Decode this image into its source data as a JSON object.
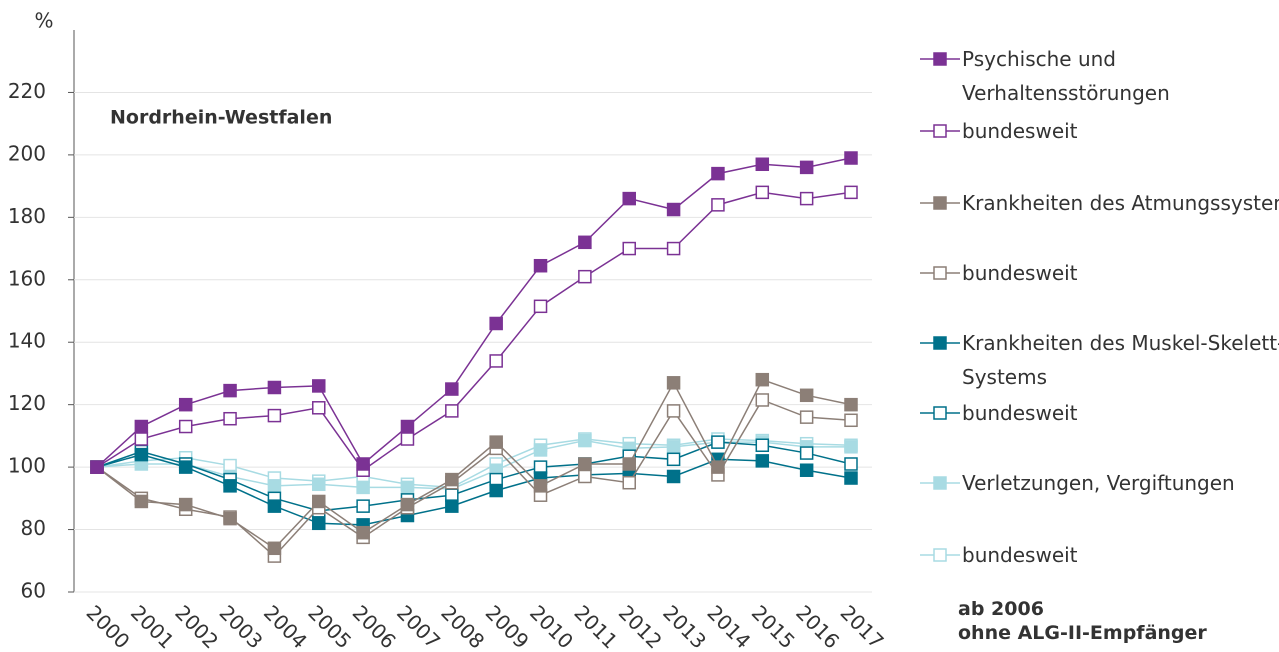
{
  "chart_data": {
    "type": "line",
    "y_label": "%",
    "annotation": "Nordrhein-Westfalen",
    "footnote": [
      "ab 2006",
      "ohne ALG-II-Empfänger"
    ],
    "categories": [
      "2000",
      "2001",
      "2002",
      "2003",
      "2004",
      "2005",
      "2006",
      "2007",
      "2008",
      "2009",
      "2010",
      "2011",
      "2012",
      "2013",
      "2014",
      "2015",
      "2016",
      "2017"
    ],
    "ylim": [
      60,
      240
    ],
    "yticks": [
      60,
      80,
      100,
      120,
      140,
      160,
      180,
      200,
      220
    ],
    "series": [
      {
        "name": "Psychische und Verhaltensstörungen",
        "color": "#7b3294",
        "filled": true,
        "values": [
          100,
          113,
          120,
          124.5,
          125.5,
          126,
          101,
          113,
          125,
          146,
          164.5,
          172,
          186,
          182.5,
          194,
          197,
          196,
          199
        ]
      },
      {
        "name": "bundesweit",
        "color": "#7b3294",
        "filled": false,
        "values": [
          100,
          109,
          113,
          115.5,
          116.5,
          119,
          99,
          109,
          118,
          134,
          151.5,
          161,
          170,
          170,
          184,
          188,
          186,
          188
        ]
      },
      {
        "name": "Krankheiten des Atmungssystems",
        "color": "#8c7f77",
        "filled": true,
        "values": [
          100,
          89,
          88,
          83.5,
          74,
          89,
          79,
          88,
          96,
          108,
          94,
          101,
          101,
          127,
          100,
          128,
          123,
          120
        ]
      },
      {
        "name": "bundesweit",
        "color": "#8c7f77",
        "filled": false,
        "values": [
          100,
          90,
          86.5,
          84,
          71.5,
          87,
          77.5,
          87,
          95,
          106,
          91,
          97,
          95,
          118,
          97.5,
          121.5,
          116,
          115
        ]
      },
      {
        "name": "Krankheiten des Muskel-Skelett-Systems",
        "color": "#00718a",
        "filled": true,
        "values": [
          100,
          104,
          100,
          94,
          87.5,
          82,
          81.5,
          84.5,
          87.5,
          92.5,
          96.5,
          97.5,
          98,
          97,
          102.5,
          102,
          99,
          96.5
        ]
      },
      {
        "name": "bundesweit",
        "color": "#00718a",
        "filled": false,
        "values": [
          100,
          105,
          101,
          96,
          90,
          86,
          87.5,
          89.5,
          91,
          96,
          100,
          101,
          103.5,
          102.5,
          108,
          107,
          104.5,
          101
        ]
      },
      {
        "name": "Verletzungen, Vergiftungen",
        "color": "#a8dbe3",
        "filled": true,
        "values": [
          100,
          101,
          101,
          97,
          94,
          94.5,
          93.5,
          93.5,
          93,
          99,
          105.5,
          108.5,
          106,
          106.5,
          108,
          108,
          106.5,
          106.5
        ]
      },
      {
        "name": "bundesweit",
        "color": "#a8dbe3",
        "filled": false,
        "values": [
          100,
          102,
          103,
          100.5,
          96.5,
          95.5,
          97,
          94.5,
          93.5,
          101,
          107,
          109,
          107.5,
          107,
          109,
          108.5,
          107.5,
          107
        ]
      }
    ]
  }
}
